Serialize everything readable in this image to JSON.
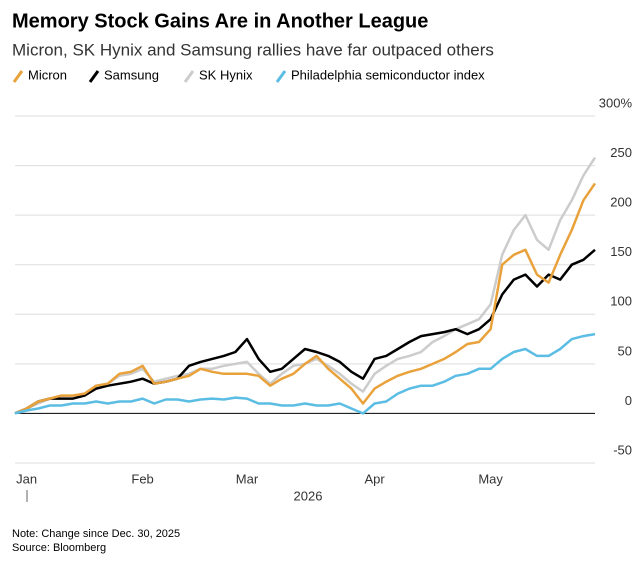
{
  "chart_data": {
    "type": "line",
    "title": "Memory Stock Gains Are in Another League",
    "subtitle": "Micron, SK Hynix and Samsung rallies have far outpaced others",
    "x_label": "2026",
    "categories": [
      null,
      "Jan",
      null,
      null,
      null,
      null,
      null,
      null,
      null,
      null,
      null,
      "Feb",
      null,
      null,
      null,
      null,
      null,
      null,
      null,
      null,
      "Mar",
      null,
      null,
      null,
      null,
      null,
      null,
      null,
      null,
      null,
      null,
      "Apr",
      null,
      null,
      null,
      null,
      null,
      null,
      null,
      null,
      null,
      "May",
      null,
      null,
      null,
      null,
      null,
      null,
      null,
      null,
      null
    ],
    "series": [
      {
        "name": "Micron",
        "color": "#e9a23b",
        "values": [
          0,
          5,
          12,
          15,
          18,
          18,
          20,
          28,
          30,
          40,
          42,
          48,
          30,
          32,
          35,
          38,
          45,
          42,
          40,
          40,
          40,
          38,
          28,
          35,
          40,
          50,
          58,
          45,
          35,
          25,
          10,
          25,
          32,
          38,
          42,
          45,
          50,
          55,
          62,
          70,
          72,
          85,
          150,
          160,
          165,
          140,
          132,
          160,
          185,
          215,
          232
        ]
      },
      {
        "name": "Samsung",
        "color": "#000000",
        "values": [
          0,
          5,
          12,
          15,
          15,
          15,
          18,
          25,
          28,
          30,
          32,
          35,
          30,
          32,
          35,
          48,
          52,
          55,
          58,
          62,
          75,
          55,
          42,
          45,
          55,
          65,
          62,
          58,
          52,
          42,
          35,
          55,
          58,
          65,
          72,
          78,
          80,
          82,
          85,
          80,
          85,
          95,
          120,
          135,
          140,
          128,
          140,
          135,
          150,
          155,
          165
        ]
      },
      {
        "name": "SK Hynix",
        "color": "#cccccc",
        "values": [
          0,
          5,
          10,
          15,
          18,
          18,
          20,
          28,
          30,
          38,
          40,
          45,
          32,
          35,
          38,
          40,
          45,
          45,
          48,
          50,
          52,
          40,
          30,
          40,
          48,
          50,
          55,
          48,
          40,
          30,
          22,
          40,
          48,
          55,
          58,
          62,
          72,
          78,
          85,
          90,
          95,
          110,
          160,
          185,
          200,
          175,
          165,
          195,
          215,
          240,
          258
        ]
      },
      {
        "name": "Philadelphia semiconductor index",
        "color": "#5bbde4",
        "values": [
          0,
          3,
          5,
          8,
          8,
          10,
          10,
          12,
          10,
          12,
          12,
          15,
          10,
          14,
          14,
          12,
          14,
          15,
          14,
          16,
          15,
          10,
          10,
          8,
          8,
          10,
          8,
          8,
          10,
          5,
          0,
          10,
          12,
          20,
          25,
          28,
          28,
          32,
          38,
          40,
          45,
          45,
          55,
          62,
          65,
          58,
          58,
          65,
          75,
          78,
          80
        ]
      }
    ],
    "ylim": [
      -50,
      300
    ],
    "yticks": [
      -50,
      0,
      50,
      100,
      150,
      200,
      250,
      {
        "value": 300,
        "label": "300%"
      }
    ],
    "grid": true,
    "notes": [
      "Note: Change since Dec. 30, 2025",
      "Source: Bloomberg"
    ]
  }
}
